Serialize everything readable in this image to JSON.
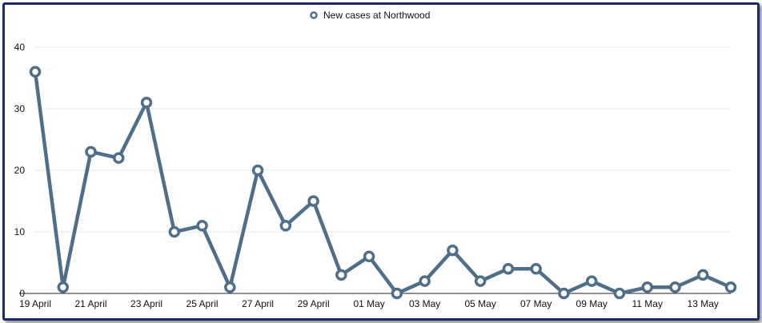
{
  "chart_data": {
    "type": "line",
    "title": "",
    "xlabel": "",
    "ylabel": "",
    "ylim": [
      0,
      40
    ],
    "yticks": [
      0,
      10,
      20,
      30,
      40
    ],
    "grid": true,
    "legend_position": "top-center",
    "color": "#4e6e8a",
    "categories": [
      "19 April",
      "20 April",
      "21 April",
      "22 April",
      "23 April",
      "24 April",
      "25 April",
      "26 April",
      "27 April",
      "28 April",
      "29 April",
      "30 April",
      "01 May",
      "02 May",
      "03 May",
      "04 May",
      "05 May",
      "06 May",
      "07 May",
      "08 May",
      "09 May",
      "10 May",
      "11 May",
      "12 May",
      "13 May",
      "14 May"
    ],
    "tick_labels": [
      "19 April",
      "21 April",
      "23 April",
      "25 April",
      "27 April",
      "29 April",
      "01 May",
      "03 May",
      "05 May",
      "07 May",
      "09 May",
      "11 May",
      "13 May"
    ],
    "series": [
      {
        "name": "New cases at Northwood",
        "values": [
          36,
          1,
          23,
          22,
          31,
          10,
          11,
          1,
          20,
          11,
          15,
          3,
          6,
          0,
          2,
          7,
          2,
          4,
          4,
          0,
          2,
          0,
          1,
          1,
          3,
          1
        ]
      }
    ]
  }
}
